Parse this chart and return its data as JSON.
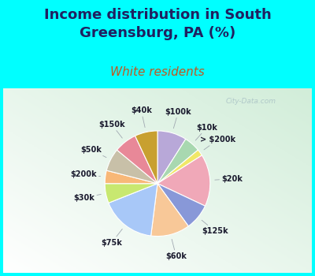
{
  "title": "Income distribution in South\nGreensburg, PA (%)",
  "subtitle": "White residents",
  "background_color": "#00FFFF",
  "chart_bg_color": "#d4eeda",
  "labels": [
    "$100k",
    "$10k",
    "> $200k",
    "$20k",
    "$125k",
    "$60k",
    "$75k",
    "$30k",
    "$200k",
    "$50k",
    "$150k",
    "$40k"
  ],
  "values": [
    9,
    5,
    2,
    16,
    8,
    12,
    17,
    6,
    4,
    7,
    7,
    7
  ],
  "colors": [
    "#b8a8d8",
    "#a8d8b0",
    "#f0e868",
    "#f0a8b8",
    "#8898d8",
    "#f8c898",
    "#a8c8f8",
    "#c8e870",
    "#f8b878",
    "#c8c0a8",
    "#e88898",
    "#c8a030"
  ],
  "title_color": "#202060",
  "subtitle_color": "#c05820",
  "title_fontsize": 13,
  "subtitle_fontsize": 11,
  "watermark": "City-Data.com",
  "startangle": 90,
  "label_fontsize": 7
}
